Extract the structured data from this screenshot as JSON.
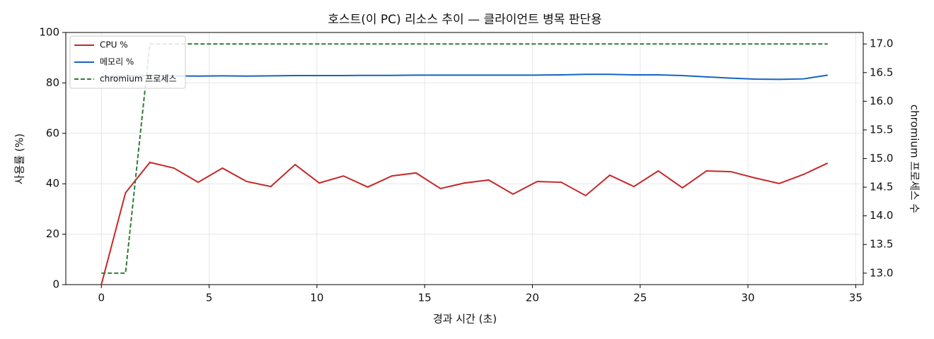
{
  "chart_data": {
    "type": "line",
    "title": "호스트(이 PC) 리소스 추이 — 클라이언트 병목 판단용",
    "xlabel": "경과 시간 (초)",
    "ylabel": "사용률 (%)",
    "y2label": "chromium 프로세스 수",
    "x": [
      0,
      1.12,
      2.25,
      3.37,
      4.49,
      5.62,
      6.74,
      7.86,
      8.99,
      10.11,
      11.23,
      12.36,
      13.48,
      14.6,
      15.73,
      16.85,
      17.97,
      19.1,
      20.22,
      21.34,
      22.47,
      23.59,
      24.71,
      25.84,
      26.96,
      28.08,
      29.21,
      30.33,
      31.45,
      32.58,
      33.7
    ],
    "series": [
      {
        "name": "CPU %",
        "color": "#c62828",
        "linestyle": "solid",
        "values": [
          0,
          36.4,
          48.5,
          46.2,
          40.6,
          46.2,
          40.9,
          38.9,
          47.6,
          40.3,
          43.1,
          38.7,
          43.1,
          44.3,
          38.1,
          40.3,
          41.5,
          35.9,
          40.9,
          40.6,
          35.3,
          43.4,
          38.9,
          45.1,
          38.4,
          45.1,
          44.8,
          42.3,
          40.1,
          43.7,
          48.2
        ]
      },
      {
        "name": "메모리 %",
        "color": "#1565c0",
        "linestyle": "solid",
        "values": [
          82.5,
          82.8,
          82.9,
          82.8,
          82.7,
          82.8,
          82.7,
          82.8,
          82.9,
          82.9,
          82.9,
          83.0,
          83.0,
          83.1,
          83.1,
          83.1,
          83.1,
          83.1,
          83.1,
          83.2,
          83.4,
          83.4,
          83.2,
          83.2,
          82.9,
          82.4,
          81.9,
          81.5,
          81.4,
          81.6,
          83.1
        ]
      },
      {
        "name": "chromium 프로세스",
        "color": "#2e7d32",
        "linestyle": "dashed",
        "axis": "y2",
        "values": [
          13,
          13,
          17,
          17,
          17,
          17,
          17,
          17,
          17,
          17,
          17,
          17,
          17,
          17,
          17,
          17,
          17,
          17,
          17,
          17,
          17,
          17,
          17,
          17,
          17,
          17,
          17,
          17,
          17,
          17,
          17
        ]
      }
    ],
    "xlim": [
      -1.65,
      35.35
    ],
    "xticks": [
      0,
      5,
      10,
      15,
      20,
      25,
      30,
      35
    ],
    "ylim": [
      0,
      100
    ],
    "yticks": [
      0,
      20,
      40,
      60,
      80,
      100
    ],
    "y2lim": [
      12.8,
      17.2
    ],
    "y2ticks": [
      {
        "value": 13,
        "label": "13.0"
      },
      13.5,
      {
        "value": 14,
        "label": "14.0"
      },
      14.5,
      {
        "value": 15,
        "label": "15.0"
      },
      15.5,
      {
        "value": 16,
        "label": "16.0"
      },
      16.5,
      {
        "value": 17,
        "label": "17.0"
      }
    ],
    "grid": true,
    "legend": "upper-left"
  }
}
